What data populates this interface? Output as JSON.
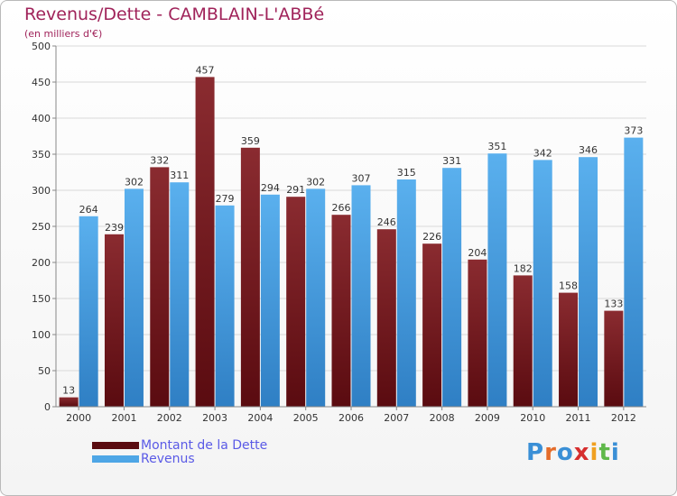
{
  "header": {
    "title": "Revenus/Dette - CAMBLAIN-L'ABBé",
    "subtitle": "(en milliers d'€)"
  },
  "chart_data": {
    "type": "bar",
    "title": "Revenus/Dette - CAMBLAIN-L'ABBé",
    "subtitle": "(en milliers d'€)",
    "categories": [
      "2000",
      "2001",
      "2002",
      "2003",
      "2004",
      "2005",
      "2006",
      "2007",
      "2008",
      "2009",
      "2010",
      "2011",
      "2012"
    ],
    "series": [
      {
        "name": "Montant de la Dette",
        "color": "#7b1e22",
        "values": [
          13,
          239,
          332,
          457,
          359,
          291,
          266,
          246,
          226,
          204,
          182,
          158,
          133
        ]
      },
      {
        "name": "Revenus",
        "color": "#4ea6e6",
        "values": [
          264,
          302,
          311,
          279,
          294,
          302,
          307,
          315,
          331,
          351,
          342,
          346,
          373
        ]
      }
    ],
    "ylim": [
      0,
      500
    ],
    "yticks": [
      0,
      50,
      100,
      150,
      200,
      250,
      300,
      350,
      400,
      450,
      500
    ],
    "grid": true,
    "legend_position": "bottom-left"
  },
  "legend": {
    "items": [
      {
        "label": "Montant de la Dette",
        "color": "#5a0b10"
      },
      {
        "label": "Revenus",
        "color": "#4ea6e6"
      }
    ]
  },
  "logo": {
    "text": "Proxiti"
  }
}
